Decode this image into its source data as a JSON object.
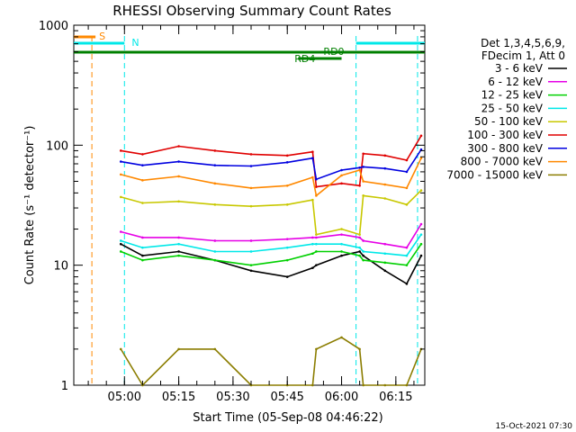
{
  "chart_data": {
    "type": "line",
    "title": "RHESSI Observing Summary Count Rates",
    "xlabel": "Start Time (05-Sep-08 04:46:22)",
    "ylabel": "Count Rate (s⁻¹ detector⁻¹)",
    "y_scale": "log",
    "ylim": [
      1,
      1000
    ],
    "xlim": [
      "04:46",
      "06:23"
    ],
    "x_ticks": [
      "05:00",
      "05:15",
      "05:30",
      "05:45",
      "06:00",
      "06:15"
    ],
    "y_ticks": [
      "1",
      "10",
      "100",
      "1000"
    ],
    "grid": false,
    "legend_position": "right",
    "legend_header": [
      "Det 1,3,4,5,6,9,",
      "FDecim 1, Att 0"
    ],
    "x": [
      "04:59",
      "05:05",
      "05:15",
      "05:25",
      "05:35",
      "05:45",
      "05:52",
      "05:53",
      "06:00",
      "06:05",
      "06:06",
      "06:12",
      "06:18",
      "06:22"
    ],
    "series": [
      {
        "name": "3 - 6 keV",
        "color": "#000000",
        "values": [
          15,
          12,
          13,
          11,
          9,
          8,
          9.5,
          10,
          12,
          13,
          12,
          9,
          7,
          12
        ]
      },
      {
        "name": "6 - 12 keV",
        "color": "#e600e6",
        "values": [
          19,
          17,
          17,
          16,
          16,
          16.5,
          17,
          17,
          18,
          17,
          16,
          15,
          14,
          22
        ]
      },
      {
        "name": "12 - 25 keV",
        "color": "#00d000",
        "values": [
          13,
          11,
          12,
          11,
          10,
          11,
          12.5,
          13,
          13,
          12,
          11,
          10.5,
          10,
          15
        ]
      },
      {
        "name": "25 - 50 keV",
        "color": "#00e8e8",
        "values": [
          16,
          14,
          15,
          13,
          13,
          14,
          15,
          15,
          15,
          14,
          13,
          12.5,
          12,
          18
        ]
      },
      {
        "name": "50 - 100 keV",
        "color": "#c8c800",
        "values": [
          37,
          33,
          34,
          32,
          31,
          32,
          35,
          18,
          20,
          18,
          38,
          36,
          32,
          42
        ]
      },
      {
        "name": "100 - 300 keV",
        "color": "#e00000",
        "values": [
          90,
          84,
          98,
          90,
          84,
          82,
          88,
          45,
          48,
          46,
          85,
          82,
          75,
          120
        ]
      },
      {
        "name": "300 - 800 keV",
        "color": "#0000e0",
        "values": [
          73,
          68,
          73,
          68,
          67,
          72,
          78,
          52,
          62,
          65,
          66,
          64,
          60,
          92
        ]
      },
      {
        "name": "800 - 7000 keV",
        "color": "#ff8800",
        "values": [
          57,
          51,
          55,
          48,
          44,
          46,
          54,
          38,
          56,
          62,
          50,
          47,
          44,
          78
        ]
      },
      {
        "name": "7000 - 15000 keV",
        "color": "#8b7d00",
        "values": [
          2,
          1,
          2,
          2,
          1,
          1,
          1,
          2,
          2.5,
          2,
          1,
          1,
          1,
          2
        ]
      }
    ],
    "annotations": [
      {
        "text": "S",
        "color": "#ff8800"
      },
      {
        "text": "N",
        "color": "#00e8e8"
      },
      {
        "text": "RD0",
        "color": "#008000"
      },
      {
        "text": "RD4",
        "color": "#008000"
      }
    ],
    "attenuator_state_bars": [
      {
        "label": "S",
        "color": "#ff8800",
        "start": "04:46",
        "end": "04:52"
      },
      {
        "label": "N",
        "color": "#00e8e8",
        "start": "04:46",
        "end": "05:00"
      },
      {
        "label": "N",
        "color": "#00e8e8",
        "start": "06:04",
        "end": "06:23"
      },
      {
        "label": "RD0",
        "color": "#008000",
        "start": "04:46",
        "end": "06:23"
      },
      {
        "label": "RD4",
        "color": "#008000",
        "start": "05:48",
        "end": "06:00"
      }
    ],
    "vertical_markers": [
      {
        "time": "04:51",
        "color": "#ff8800"
      },
      {
        "time": "05:00",
        "color": "#00e8e8"
      },
      {
        "time": "06:04",
        "color": "#00e8e8"
      },
      {
        "time": "06:21",
        "color": "#00e8e8"
      }
    ]
  },
  "footer": {
    "timestamp": "15-Oct-2021 07:30"
  }
}
